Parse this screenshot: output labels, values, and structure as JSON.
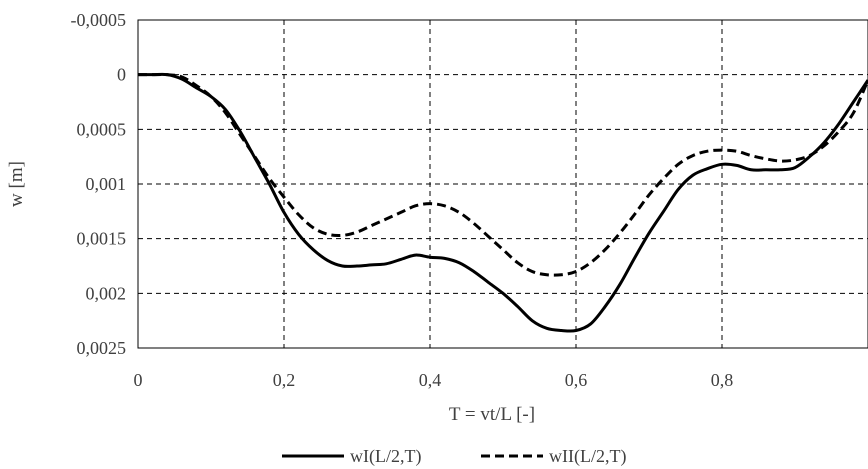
{
  "chart_data": {
    "type": "line",
    "title": "",
    "xlabel": "T = vt/L [-]",
    "ylabel": "w [m]",
    "xlim": [
      0,
      1
    ],
    "ylim": [
      0.0025,
      -0.0005
    ],
    "y_axis_inverted": true,
    "grid": true,
    "legend_position": "bottom-center",
    "x_ticks": [
      0,
      0.2,
      0.4,
      0.6,
      0.8,
      1
    ],
    "x_tick_labels": [
      "0",
      "0,2",
      "0,4",
      "0,6",
      "0,8",
      "1"
    ],
    "y_ticks": [
      -0.0005,
      0,
      0.0005,
      0.001,
      0.0015,
      0.002,
      0.0025
    ],
    "y_tick_labels": [
      "-0,0005",
      "0",
      "0,0005",
      "0,001",
      "0,0015",
      "0,002",
      "0,0025"
    ],
    "series": [
      {
        "name": "wI(L/2,T)",
        "style": "solid",
        "color": "#000000",
        "x": [
          0,
          0.02,
          0.04,
          0.06,
          0.08,
          0.1,
          0.12,
          0.14,
          0.16,
          0.18,
          0.2,
          0.22,
          0.24,
          0.26,
          0.28,
          0.3,
          0.32,
          0.34,
          0.36,
          0.38,
          0.4,
          0.42,
          0.44,
          0.46,
          0.48,
          0.5,
          0.52,
          0.54,
          0.56,
          0.58,
          0.6,
          0.62,
          0.64,
          0.66,
          0.68,
          0.7,
          0.72,
          0.74,
          0.76,
          0.78,
          0.8,
          0.82,
          0.84,
          0.86,
          0.88,
          0.9,
          0.92,
          0.94,
          0.96,
          0.98,
          1.0
        ],
        "y": [
          0,
          0,
          0,
          4e-05,
          0.00012,
          0.0002,
          0.00032,
          0.00052,
          0.00076,
          0.001,
          0.00126,
          0.00146,
          0.0016,
          0.0017,
          0.00175,
          0.00175,
          0.00174,
          0.00173,
          0.00169,
          0.00165,
          0.00167,
          0.00168,
          0.00172,
          0.0018,
          0.0019,
          0.002,
          0.00212,
          0.00225,
          0.00232,
          0.00234,
          0.00234,
          0.00228,
          0.00212,
          0.00192,
          0.00168,
          0.00145,
          0.00125,
          0.00105,
          0.00092,
          0.00086,
          0.00082,
          0.00083,
          0.00087,
          0.00087,
          0.00087,
          0.00085,
          0.00075,
          0.00062,
          0.00045,
          0.00025,
          5e-05
        ]
      },
      {
        "name": "wII(L/2,T)",
        "style": "dashed",
        "color": "#000000",
        "x": [
          0,
          0.02,
          0.04,
          0.06,
          0.08,
          0.1,
          0.12,
          0.14,
          0.16,
          0.18,
          0.2,
          0.22,
          0.24,
          0.26,
          0.28,
          0.3,
          0.32,
          0.34,
          0.36,
          0.38,
          0.4,
          0.42,
          0.44,
          0.46,
          0.48,
          0.5,
          0.52,
          0.54,
          0.56,
          0.58,
          0.6,
          0.62,
          0.64,
          0.66,
          0.68,
          0.7,
          0.72,
          0.74,
          0.76,
          0.78,
          0.8,
          0.82,
          0.84,
          0.86,
          0.88,
          0.9,
          0.92,
          0.94,
          0.96,
          0.98,
          1.0
        ],
        "y": [
          0,
          0,
          0,
          2e-05,
          0.0001,
          0.0002,
          0.00035,
          0.00055,
          0.00075,
          0.00095,
          0.00112,
          0.00128,
          0.0014,
          0.00146,
          0.00147,
          0.00144,
          0.00138,
          0.00132,
          0.00126,
          0.0012,
          0.00118,
          0.0012,
          0.00126,
          0.00136,
          0.00148,
          0.0016,
          0.00172,
          0.0018,
          0.00183,
          0.00183,
          0.0018,
          0.00172,
          0.0016,
          0.00145,
          0.00128,
          0.0011,
          0.00095,
          0.00082,
          0.00074,
          0.0007,
          0.00069,
          0.0007,
          0.00074,
          0.00077,
          0.00079,
          0.00078,
          0.00074,
          0.00065,
          0.00052,
          0.00035,
          5e-05
        ]
      }
    ]
  }
}
